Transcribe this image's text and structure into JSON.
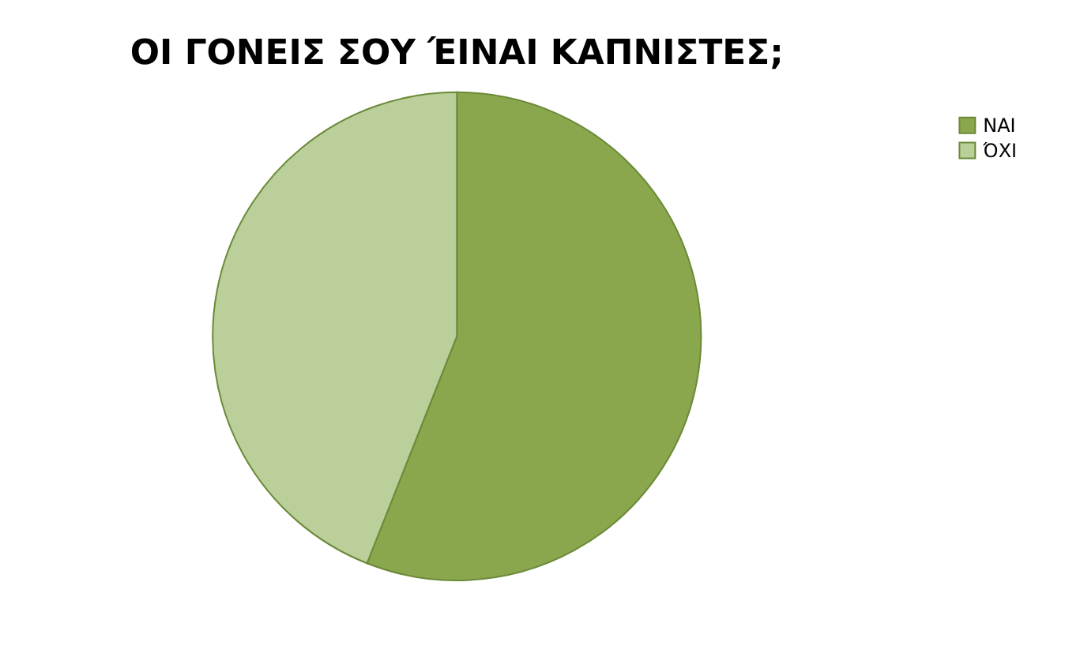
{
  "chart_data": {
    "type": "pie",
    "title": "ΟΙ ΓΟΝΕΙΣ ΣΟΥ ΈΙΝΑΙ ΚΑΠΝΙΣΤΕΣ;",
    "categories": [
      "ΝΑΙ",
      "ΌΧΙ"
    ],
    "values": [
      56,
      44
    ],
    "colors": [
      "#8aa74e",
      "#bacf99"
    ],
    "legend": "right"
  }
}
